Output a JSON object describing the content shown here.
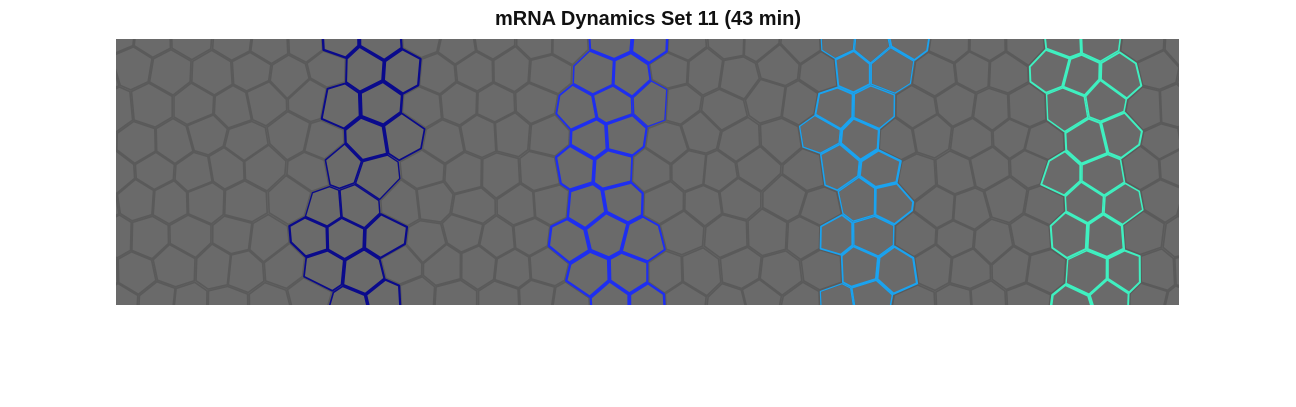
{
  "figure": {
    "title": "mRNA Dynamics Set 11 (43 min)"
  },
  "background": {
    "tissue_color": "#6a6a6a",
    "membrane_color": "#5a5a5a"
  },
  "stripes": [
    {
      "id": "stripe-1",
      "color": "#0a0a8c"
    },
    {
      "id": "stripe-2",
      "color": "#1e2ef0"
    },
    {
      "id": "stripe-3",
      "color": "#1aa3f0"
    },
    {
      "id": "stripe-4",
      "color": "#3ff0c0"
    }
  ]
}
